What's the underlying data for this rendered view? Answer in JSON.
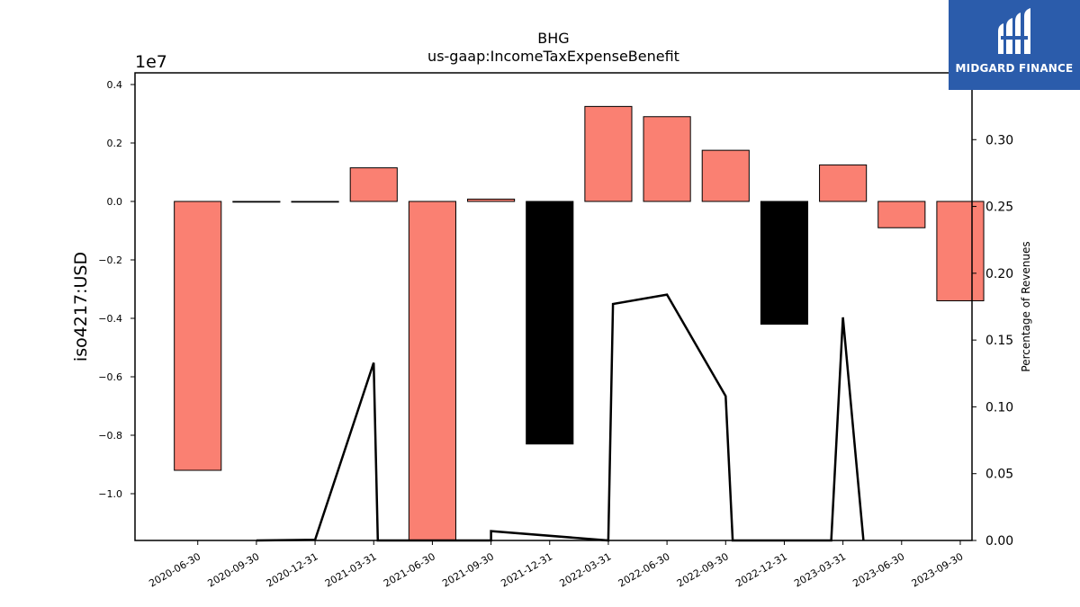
{
  "chart_data": {
    "type": "bar",
    "title": "BHG",
    "subtitle": "us-gaap:IncomeTaxExpenseBenefit",
    "ylabel": "iso4217:USD",
    "y2label": "Percentage of Revenues",
    "y_offset_label": "1e7",
    "categories": [
      "2020-06-30",
      "2020-09-30",
      "2020-12-31",
      "2021-03-31",
      "2021-06-30",
      "2021-09-30",
      "2021-12-31",
      "2022-03-31",
      "2022-06-30",
      "2022-09-30",
      "2022-12-31",
      "2023-03-31",
      "2023-06-30",
      "2023-09-30"
    ],
    "values": [
      -9200000,
      -20000,
      -20000,
      1150000,
      -12000000,
      80000,
      -8300000,
      3250000,
      2900000,
      1750000,
      -4200000,
      1250000,
      -900000,
      -3400000
    ],
    "bar_colors": [
      "#fa8072",
      "#fa8072",
      "#fa8072",
      "#fa8072",
      "#fa8072",
      "#fa8072",
      "#000000",
      "#fa8072",
      "#fa8072",
      "#fa8072",
      "#000000",
      "#fa8072",
      "#fa8072",
      "#fa8072"
    ],
    "ylim": [
      -11600000,
      4400000
    ],
    "yticks": [
      -1.0,
      -0.8,
      -0.6,
      -0.4,
      -0.2,
      0.0,
      0.2,
      0.4
    ],
    "ytick_labels": [
      "−1.0",
      "−0.8",
      "−0.6",
      "−0.4",
      "−0.2",
      "0.0",
      "0.2",
      "0.4"
    ],
    "y2lim": [
      0.0,
      0.35
    ],
    "y2ticks": [
      0.0,
      0.05,
      0.1,
      0.15,
      0.2,
      0.25,
      0.3
    ],
    "y2tick_labels": [
      "0.00",
      "0.05",
      "0.10",
      "0.15",
      "0.20",
      "0.25",
      "0.30"
    ],
    "line_series": {
      "points": [
        [
          1,
          0.0
        ],
        [
          2,
          0.0005
        ],
        [
          3,
          0.133
        ],
        [
          3.07,
          0.0
        ],
        [
          5,
          0.0
        ],
        [
          5,
          0.007
        ],
        [
          7,
          0.0
        ],
        [
          7.08,
          0.177
        ],
        [
          8,
          0.184
        ],
        [
          9,
          0.108
        ],
        [
          9.12,
          0.0
        ],
        [
          10.8,
          0.0
        ],
        [
          11,
          0.167
        ],
        [
          11.35,
          0.0
        ]
      ],
      "color": "#000000"
    }
  },
  "logo": {
    "text": "MIDGARD FINANCE",
    "background": "#2b5cab"
  }
}
